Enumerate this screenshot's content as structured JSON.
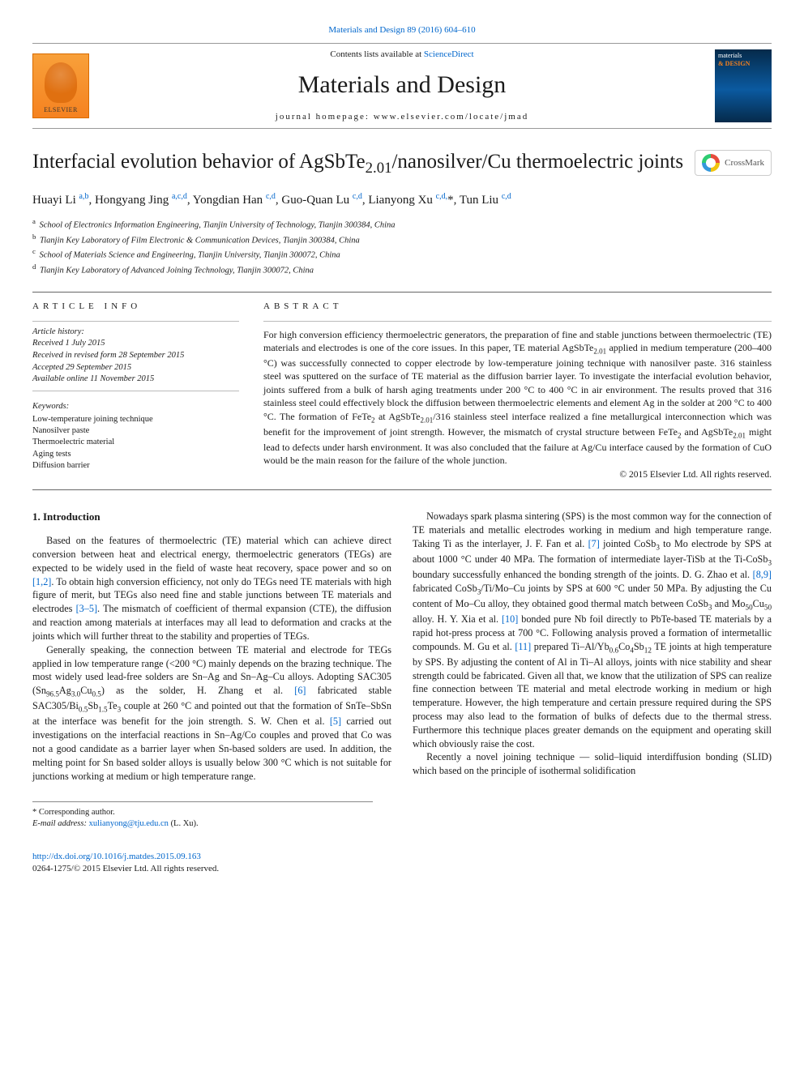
{
  "top_link": "Materials and Design 89 (2016) 604–610",
  "masthead": {
    "contents_line_prefix": "Contents lists available at ",
    "contents_link": "ScienceDirect",
    "journal_title": "Materials and Design",
    "homepage_prefix": "journal homepage: ",
    "homepage_url": "www.elsevier.com/locate/jmad",
    "elsevier_brand": "ELSEVIER",
    "cover_line1": "materials",
    "cover_line2": "& DESIGN"
  },
  "article": {
    "title_html": "Interfacial evolution behavior of AgSbTe<sub>2.01</sub>/nanosilver/Cu thermoelectric joints",
    "crossmark_label": "CrossMark"
  },
  "authors_html": "Huayi Li <sup>a,b</sup>, Hongyang Jing <sup>a,c,d</sup>, Yongdian Han <sup>c,d</sup>, Guo-Quan Lu <sup>c,d</sup>, Lianyong Xu <sup>c,d,</sup>*, Tun Liu <sup>c,d</sup>",
  "affiliations": [
    {
      "key": "a",
      "text": "School of Electronics Information Engineering, Tianjin University of Technology, Tianjin 300384, China"
    },
    {
      "key": "b",
      "text": "Tianjin Key Laboratory of Film Electronic & Communication Devices, Tianjin 300384, China"
    },
    {
      "key": "c",
      "text": "School of Materials Science and Engineering, Tianjin University, Tianjin 300072, China"
    },
    {
      "key": "d",
      "text": "Tianjin Key Laboratory of Advanced Joining Technology, Tianjin 300072, China"
    }
  ],
  "info_label": "ARTICLE INFO",
  "abstract_label": "ABSTRACT",
  "history": {
    "label": "Article history:",
    "received": "Received 1 July 2015",
    "revised": "Received in revised form 28 September 2015",
    "accepted": "Accepted 29 September 2015",
    "online": "Available online 11 November 2015"
  },
  "keywords": {
    "label": "Keywords:",
    "items": [
      "Low-temperature joining technique",
      "Nanosilver paste",
      "Thermoelectric material",
      "Aging tests",
      "Diffusion barrier"
    ]
  },
  "abstract_html": "For high conversion efficiency thermoelectric generators, the preparation of fine and stable junctions between thermoelectric (TE) materials and electrodes is one of the core issues. In this paper, TE material AgSbTe<sub>2.01</sub> applied in medium temperature (200–400 °C) was successfully connected to copper electrode by low-temperature joining technique with nanosilver paste. 316 stainless steel was sputtered on the surface of TE material as the diffusion barrier layer. To investigate the interfacial evolution behavior, joints suffered from a bulk of harsh aging treatments under 200 °C to 400 °C in air environment. The results proved that 316 stainless steel could effectively block the diffusion between thermoelectric elements and element Ag in the solder at 200 °C to 400 °C. The formation of FeTe<sub>2</sub> at AgSbTe<sub>2.01</sub>/316 stainless steel interface realized a fine metallurgical interconnection which was benefit for the improvement of joint strength. However, the mismatch of crystal structure between FeTe<sub>2</sub> and AgSbTe<sub>2.01</sub> might lead to defects under harsh environment. It was also concluded that the failure at Ag/Cu interface caused by the formation of CuO would be the main reason for the failure of the whole junction.",
  "abstract_copyright": "© 2015 Elsevier Ltd. All rights reserved.",
  "section1_heading": "1. Introduction",
  "body": {
    "p1_html": "Based on the features of thermoelectric (TE) material which can achieve direct conversion between heat and electrical energy, thermoelectric generators (TEGs) are expected to be widely used in the field of waste heat recovery, space power and so on <span class='ref'>[1,2]</span>. To obtain high conversion efficiency, not only do TEGs need TE materials with high figure of merit, but TEGs also need fine and stable junctions between TE materials and electrodes <span class='ref'>[3–5]</span>. The mismatch of coefficient of thermal expansion (CTE), the diffusion and reaction among materials at interfaces may all lead to deformation and cracks at the joints which will further threat to the stability and properties of TEGs.",
    "p2_html": "Generally speaking, the connection between TE material and electrode for TEGs applied in low temperature range (&lt;200 °C) mainly depends on the brazing technique. The most widely used lead-free solders are Sn–Ag and Sn–Ag–Cu alloys. Adopting SAC305 (Sn<sub>96.5</sub>Ag<sub>3.0</sub>Cu<sub>0.5</sub>) as the solder, H. Zhang et al. <span class='ref'>[6]</span> fabricated stable SAC305/Bi<sub>0.5</sub>Sb<sub>1.5</sub>Te<sub>3</sub> couple at 260 °C and pointed out that the formation of SnTe–SbSn at the interface was benefit for the join strength. S. W. Chen et al. <span class='ref'>[5]</span> carried out investigations on the interfacial reactions in Sn–Ag/Co couples and proved that Co was not a good candidate as a barrier layer when Sn-based solders are used. In addition, the melting point for Sn based solder alloys is usually below 300 °C which is not suitable for junctions working at medium or high temperature range.",
    "p3_html": "Nowadays spark plasma sintering (SPS) is the most common way for the connection of TE materials and metallic electrodes working in medium and high temperature range. Taking Ti as the interlayer, J. F. Fan et al. <span class='ref'>[7]</span> jointed CoSb<sub>3</sub> to Mo electrode by SPS at about 1000 °C under 40 MPa. The formation of intermediate layer-TiSb at the Ti-CoSb<sub>3</sub> boundary successfully enhanced the bonding strength of the joints. D. G. Zhao et al. <span class='ref'>[8,9]</span> fabricated CoSb<sub>3</sub>/Ti/Mo–Cu joints by SPS at 600 °C under 50 MPa. By adjusting the Cu content of Mo–Cu alloy, they obtained good thermal match between CoSb<sub>3</sub> and Mo<sub>50</sub>Cu<sub>50</sub> alloy. H. Y. Xia et al. <span class='ref'>[10]</span> bonded pure Nb foil directly to PbTe-based TE materials by a rapid hot-press process at 700 °C. Following analysis proved a formation of intermetallic compounds. M. Gu et al. <span class='ref'>[11]</span> prepared Ti–Al/Yb<sub>0.6</sub>Co<sub>4</sub>Sb<sub>12</sub> TE joints at high temperature by SPS. By adjusting the content of Al in Ti–Al alloys, joints with nice stability and shear strength could be fabricated. Given all that, we know that the utilization of SPS can realize fine connection between TE material and metal electrode working in medium or high temperature. However, the high temperature and certain pressure required during the SPS process may also lead to the formation of bulks of defects due to the thermal stress. Furthermore this technique places greater demands on the equipment and operating skill which obviously raise the cost.",
    "p4_html": "Recently a novel joining technique — solid–liquid interdiffusion bonding (SLID) which based on the principle of isothermal solidification"
  },
  "footnote": {
    "corr": "Corresponding author.",
    "email_label": "E-mail address:",
    "email": "xulianyong@tju.edu.cn",
    "email_tail": " (L. Xu)."
  },
  "footer": {
    "doi": "http://dx.doi.org/10.1016/j.matdes.2015.09.163",
    "issn_line": "0264-1275/© 2015 Elsevier Ltd. All rights reserved."
  },
  "colors": {
    "link": "#0066cc",
    "rule": "#666666",
    "elsevier_orange": "#f58220",
    "cover_blue": "#0b5aa0"
  }
}
